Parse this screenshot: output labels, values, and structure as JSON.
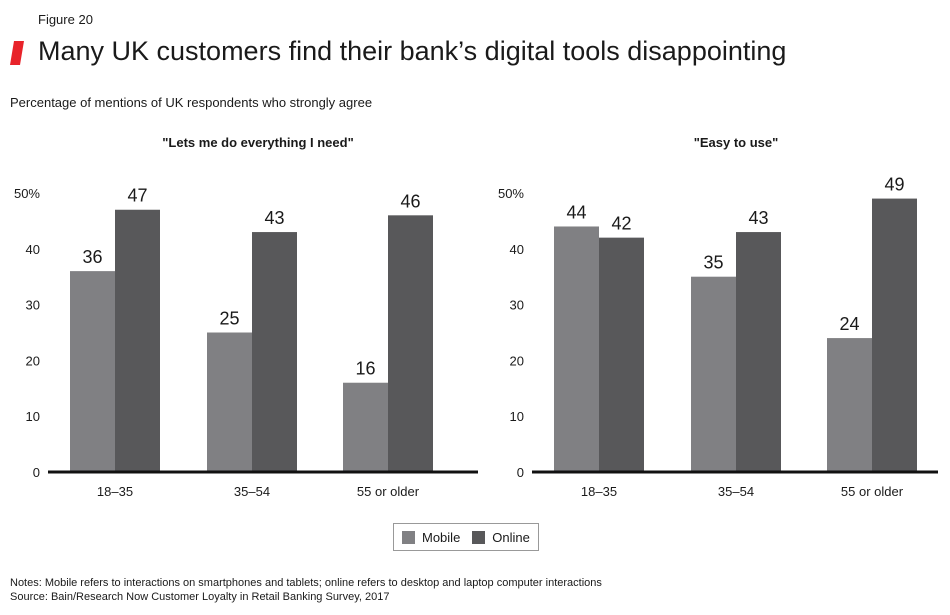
{
  "figure_label": "Figure 20",
  "title": "Many UK customers find their bank’s digital tools disappointing",
  "subtitle": "Percentage of mentions of UK respondents who strongly agree",
  "colors": {
    "accent": "#e8232a",
    "mobile": "#808083",
    "online": "#58585a",
    "axis": "#111111"
  },
  "legend": [
    {
      "label": "Mobile",
      "color": "#808083"
    },
    {
      "label": "Online",
      "color": "#58585a"
    }
  ],
  "notes": [
    "Notes: Mobile refers to interactions on smartphones and tablets; online refers to desktop and laptop computer interactions",
    "Source: Bain/Research Now Customer Loyalty in Retail Banking Survey, 2017"
  ],
  "chart_data": [
    {
      "type": "bar",
      "title": "\"Lets me do everything I need\"",
      "categories": [
        "18–35",
        "35–54",
        "55 or older"
      ],
      "series": [
        {
          "name": "Mobile",
          "values": [
            36,
            25,
            16
          ]
        },
        {
          "name": "Online",
          "values": [
            47,
            43,
            46
          ]
        }
      ],
      "ylim": [
        0,
        50
      ],
      "yticks": [
        "0",
        "10",
        "20",
        "30",
        "40",
        "50%"
      ],
      "grid": false
    },
    {
      "type": "bar",
      "title": "\"Easy to use\"",
      "categories": [
        "18–35",
        "35–54",
        "55 or older"
      ],
      "series": [
        {
          "name": "Mobile",
          "values": [
            44,
            35,
            24
          ]
        },
        {
          "name": "Online",
          "values": [
            42,
            43,
            49
          ]
        }
      ],
      "ylim": [
        0,
        50
      ],
      "yticks": [
        "0",
        "10",
        "20",
        "30",
        "40",
        "50%"
      ],
      "grid": false
    }
  ]
}
